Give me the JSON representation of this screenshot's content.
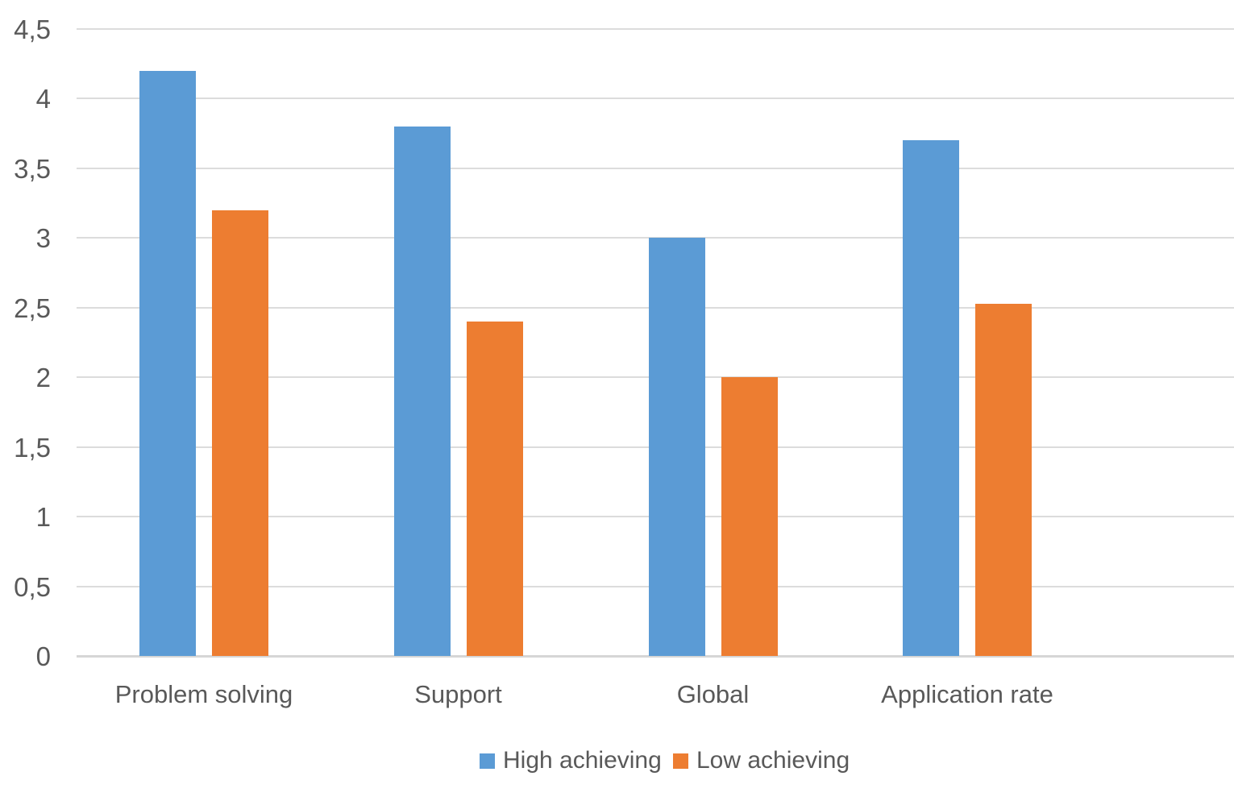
{
  "chart_data": {
    "type": "bar",
    "title": "",
    "xlabel": "",
    "ylabel": "",
    "categories": [
      "Problem solving",
      "Support",
      "Global",
      "Application rate"
    ],
    "series": [
      {
        "name": "High achieving",
        "color": "#5B9BD5",
        "values": [
          4.2,
          3.8,
          3.0,
          3.7
        ]
      },
      {
        "name": "Low achieving",
        "color": "#ED7D31",
        "values": [
          3.2,
          2.4,
          2.0,
          2.53
        ]
      }
    ],
    "ylim": [
      0,
      4.5
    ],
    "ytick_step": 0.5,
    "ytick_labels": [
      "0",
      "0,5",
      "1",
      "1,5",
      "2",
      "2,5",
      "3",
      "3,5",
      "4",
      "4,5"
    ],
    "decimal_separator": ",",
    "grid": true,
    "legend_position": "bottom",
    "colors": {
      "text": "#595959",
      "gridline": "#DCDCDC",
      "axis_line": "#D6D6D6",
      "background": "#FFFFFF"
    }
  }
}
